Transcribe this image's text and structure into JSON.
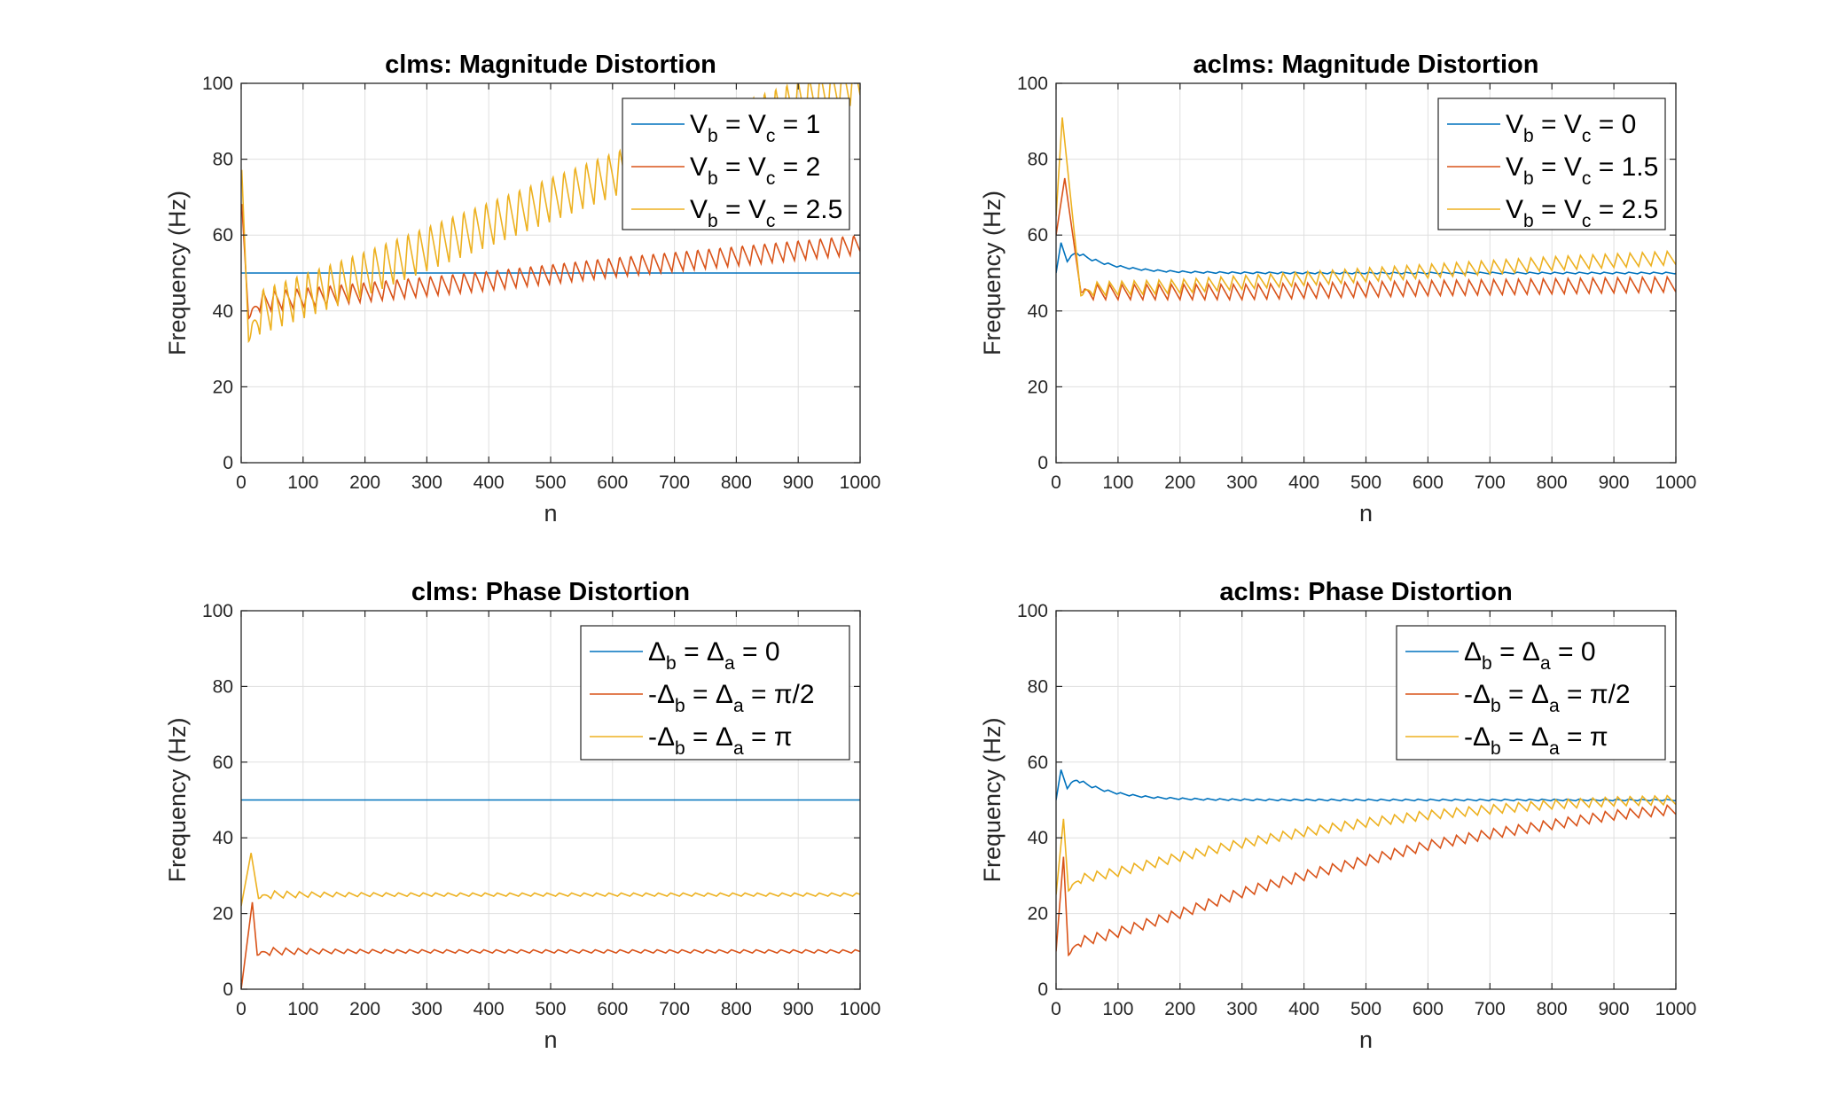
{
  "colors": {
    "series1": "#0072BD",
    "series2": "#D95319",
    "series3": "#EDB120",
    "grid": "#dfdfdf",
    "axis": "#262626"
  },
  "chart_data": [
    {
      "type": "line",
      "title": "clms: Magnitude Distortion",
      "xlabel": "n",
      "ylabel": "Frequency (Hz)",
      "xlim": [
        0,
        1000
      ],
      "ylim": [
        0,
        100
      ],
      "xticks": [
        "0",
        "100",
        "200",
        "300",
        "400",
        "500",
        "600",
        "700",
        "800",
        "900",
        "1000"
      ],
      "yticks": [
        "0",
        "20",
        "40",
        "60",
        "80",
        "100"
      ],
      "grid": true,
      "legend_position": "top-right",
      "legend": [
        {
          "parts": [
            [
              "V",
              ""
            ],
            [
              "b",
              "sub"
            ],
            [
              " = V",
              ""
            ],
            [
              "c",
              "sub"
            ],
            [
              " = 1",
              ""
            ]
          ]
        },
        {
          "parts": [
            [
              "V",
              ""
            ],
            [
              "b",
              "sub"
            ],
            [
              " = V",
              ""
            ],
            [
              "c",
              "sub"
            ],
            [
              " = 2",
              ""
            ]
          ]
        },
        {
          "parts": [
            [
              "V",
              ""
            ],
            [
              "b",
              "sub"
            ],
            [
              " = V",
              ""
            ],
            [
              "c",
              "sub"
            ],
            [
              " = 2.5",
              ""
            ]
          ]
        }
      ],
      "series": [
        {
          "color": "series1",
          "start": 50,
          "peak": 50,
          "peak_n": 5,
          "trough": 50,
          "trough_n": 10,
          "base": [
            [
              0,
              50
            ],
            [
              1000,
              50
            ]
          ],
          "settle": 0,
          "osc_amp": 0,
          "osc_period": 20
        },
        {
          "color": "series2",
          "start": 68,
          "peak": 68,
          "peak_n": 1,
          "trough": 38,
          "trough_n": 12,
          "base": [
            [
              0,
              42
            ],
            [
              200,
              45
            ],
            [
              400,
              48
            ],
            [
              600,
              51.5
            ],
            [
              800,
              54.5
            ],
            [
              1000,
              57.5
            ]
          ],
          "settle": 0,
          "osc_amp": 2.6,
          "osc_period": 18
        },
        {
          "color": "series3",
          "start": 77,
          "peak": 77,
          "peak_n": 1,
          "trough": 32,
          "trough_n": 12,
          "base": [
            [
              0,
              38
            ],
            [
              200,
              50
            ],
            [
              400,
              63
            ],
            [
              600,
              76
            ],
            [
              800,
              89
            ],
            [
              1000,
              101
            ]
          ],
          "settle": 0,
          "osc_amp": 6,
          "osc_period": 18
        }
      ]
    },
    {
      "type": "line",
      "title": "aclms: Magnitude Distortion",
      "xlabel": "n",
      "ylabel": "Frequency (Hz)",
      "xlim": [
        0,
        1000
      ],
      "ylim": [
        0,
        100
      ],
      "xticks": [
        "0",
        "100",
        "200",
        "300",
        "400",
        "500",
        "600",
        "700",
        "800",
        "900",
        "1000"
      ],
      "yticks": [
        "0",
        "20",
        "40",
        "60",
        "80",
        "100"
      ],
      "grid": true,
      "legend_position": "top-right",
      "legend": [
        {
          "parts": [
            [
              "V",
              ""
            ],
            [
              "b",
              "sub"
            ],
            [
              " = V",
              ""
            ],
            [
              "c",
              "sub"
            ],
            [
              " = 0",
              ""
            ]
          ]
        },
        {
          "parts": [
            [
              "V",
              ""
            ],
            [
              "b",
              "sub"
            ],
            [
              " = V",
              ""
            ],
            [
              "c",
              "sub"
            ],
            [
              " = 1.5",
              ""
            ]
          ]
        },
        {
          "parts": [
            [
              "V",
              ""
            ],
            [
              "b",
              "sub"
            ],
            [
              " = V",
              ""
            ],
            [
              "c",
              "sub"
            ],
            [
              " = 2.5",
              ""
            ]
          ]
        }
      ],
      "series": [
        {
          "color": "series1",
          "start": 50,
          "peak": 58,
          "peak_n": 8,
          "trough": 53,
          "trough_n": 18,
          "base": [
            [
              0,
              50
            ],
            [
              1000,
              50
            ]
          ],
          "settle": 7,
          "settle_tau": 60,
          "osc_amp": 0.6,
          "osc_period": 20,
          "osc_decay": 40
        },
        {
          "color": "series2",
          "start": 60,
          "peak": 75,
          "peak_n": 14,
          "trough": 45,
          "trough_n": 40,
          "base": [
            [
              0,
              45
            ],
            [
              300,
              45
            ],
            [
              600,
              46
            ],
            [
              1000,
              47
            ]
          ],
          "settle": 0,
          "osc_amp": 2,
          "osc_period": 20
        },
        {
          "color": "series3",
          "start": 65,
          "peak": 91,
          "peak_n": 10,
          "trough": 44,
          "trough_n": 40,
          "base": [
            [
              0,
              45.5
            ],
            [
              200,
              46.5
            ],
            [
              400,
              48.5
            ],
            [
              600,
              50.5
            ],
            [
              800,
              52.5
            ],
            [
              1000,
              54
            ]
          ],
          "settle": 0,
          "osc_amp": 1.8,
          "osc_period": 20
        }
      ]
    },
    {
      "type": "line",
      "title": "clms: Phase Distortion",
      "xlabel": "n",
      "ylabel": "Frequency (Hz)",
      "xlim": [
        0,
        1000
      ],
      "ylim": [
        0,
        100
      ],
      "xticks": [
        "0",
        "100",
        "200",
        "300",
        "400",
        "500",
        "600",
        "700",
        "800",
        "900",
        "1000"
      ],
      "yticks": [
        "0",
        "20",
        "40",
        "60",
        "80",
        "100"
      ],
      "grid": true,
      "legend_position": "top-right",
      "legend": [
        {
          "parts": [
            [
              "Δ",
              ""
            ],
            [
              "b",
              "sub"
            ],
            [
              " = Δ",
              ""
            ],
            [
              "a",
              "sub"
            ],
            [
              " = 0",
              ""
            ]
          ]
        },
        {
          "parts": [
            [
              "-Δ",
              ""
            ],
            [
              "b",
              "sub"
            ],
            [
              " = Δ",
              ""
            ],
            [
              "a",
              "sub"
            ],
            [
              " = π/2",
              ""
            ]
          ]
        },
        {
          "parts": [
            [
              "-Δ",
              ""
            ],
            [
              "b",
              "sub"
            ],
            [
              " = Δ",
              ""
            ],
            [
              "a",
              "sub"
            ],
            [
              " = π",
              ""
            ]
          ]
        }
      ],
      "series": [
        {
          "color": "series1",
          "start": 50,
          "peak": 50,
          "peak_n": 5,
          "trough": 50,
          "trough_n": 10,
          "base": [
            [
              0,
              50
            ],
            [
              1000,
              50
            ]
          ],
          "settle": 0,
          "osc_amp": 0,
          "osc_period": 20
        },
        {
          "color": "series2",
          "start": 0,
          "peak": 23,
          "peak_n": 18,
          "trough": 9,
          "trough_n": 26,
          "base": [
            [
              0,
              10
            ],
            [
              1000,
              10
            ]
          ],
          "settle": 0,
          "osc_amp": 1.2,
          "osc_period": 20,
          "osc_decay": 80
        },
        {
          "color": "series3",
          "start": 22,
          "peak": 36,
          "peak_n": 16,
          "trough": 24,
          "trough_n": 28,
          "base": [
            [
              0,
              25
            ],
            [
              1000,
              25
            ]
          ],
          "settle": 0,
          "osc_amp": 1.2,
          "osc_period": 20,
          "osc_decay": 80
        }
      ]
    },
    {
      "type": "line",
      "title": "aclms: Phase Distortion",
      "xlabel": "n",
      "ylabel": "Frequency (Hz)",
      "xlim": [
        0,
        1000
      ],
      "ylim": [
        0,
        100
      ],
      "xticks": [
        "0",
        "100",
        "200",
        "300",
        "400",
        "500",
        "600",
        "700",
        "800",
        "900",
        "1000"
      ],
      "yticks": [
        "0",
        "20",
        "40",
        "60",
        "80",
        "100"
      ],
      "grid": true,
      "legend_position": "top-right",
      "legend": [
        {
          "parts": [
            [
              "Δ",
              ""
            ],
            [
              "b",
              "sub"
            ],
            [
              " = Δ",
              ""
            ],
            [
              "a",
              "sub"
            ],
            [
              " = 0",
              ""
            ]
          ]
        },
        {
          "parts": [
            [
              "-Δ",
              ""
            ],
            [
              "b",
              "sub"
            ],
            [
              " = Δ",
              ""
            ],
            [
              "a",
              "sub"
            ],
            [
              " = π/2",
              ""
            ]
          ]
        },
        {
          "parts": [
            [
              "-Δ",
              ""
            ],
            [
              "b",
              "sub"
            ],
            [
              " = Δ",
              ""
            ],
            [
              "a",
              "sub"
            ],
            [
              " = π",
              ""
            ]
          ]
        }
      ],
      "series": [
        {
          "color": "series1",
          "start": 50,
          "peak": 58,
          "peak_n": 8,
          "trough": 53,
          "trough_n": 18,
          "base": [
            [
              0,
              50
            ],
            [
              1000,
              50
            ]
          ],
          "settle": 7,
          "settle_tau": 60,
          "osc_amp": 0.6,
          "osc_period": 20,
          "osc_decay": 40
        },
        {
          "color": "series2",
          "start": 10,
          "peak": 35,
          "peak_n": 12,
          "trough": 9,
          "trough_n": 20,
          "base": [
            [
              0,
              11
            ],
            [
              100,
              15
            ],
            [
              200,
              20
            ],
            [
              300,
              25.5
            ],
            [
              400,
              30
            ],
            [
              500,
              34
            ],
            [
              600,
              38
            ],
            [
              700,
              41
            ],
            [
              800,
              43.5
            ],
            [
              900,
              46
            ],
            [
              1000,
              47.5
            ]
          ],
          "settle": 0,
          "osc_amp": 1.3,
          "osc_period": 20
        },
        {
          "color": "series3",
          "start": 25,
          "peak": 45,
          "peak_n": 12,
          "trough": 26,
          "trough_n": 20,
          "base": [
            [
              0,
              28
            ],
            [
              100,
              31
            ],
            [
              200,
              35
            ],
            [
              300,
              38.5
            ],
            [
              400,
              41.5
            ],
            [
              500,
              44
            ],
            [
              600,
              46
            ],
            [
              700,
              47.5
            ],
            [
              800,
              48.8
            ],
            [
              900,
              49.6
            ],
            [
              1000,
              50
            ]
          ],
          "settle": 0,
          "osc_amp": 1.2,
          "osc_period": 20
        }
      ]
    }
  ]
}
